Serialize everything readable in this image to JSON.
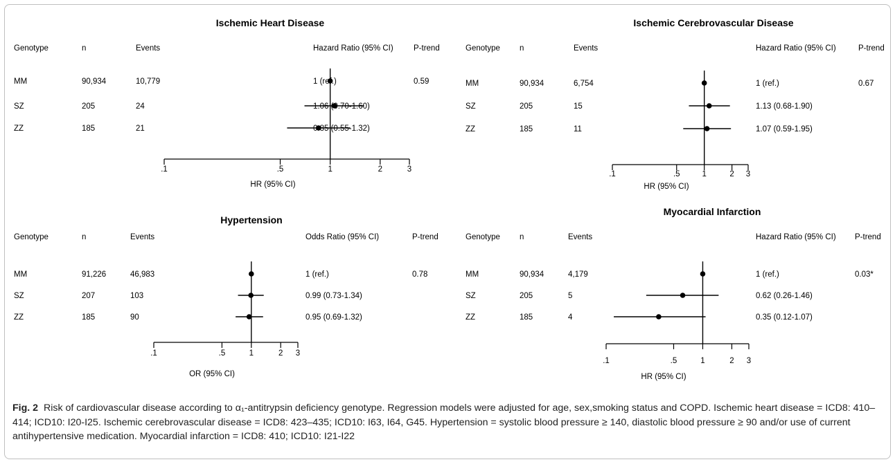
{
  "columns": {
    "genotype": "Genotype",
    "n": "n",
    "events": "Events",
    "p_trend": "P-trend"
  },
  "chart_data": [
    {
      "type": "forest",
      "title": "Ischemic Heart Disease",
      "ratio_header": "Hazard Ratio (95% CI)",
      "xlabel": "HR (95% CI)",
      "x_scale": "log",
      "xlim": [
        0.1,
        3
      ],
      "ticks": [
        {
          "value": 0.1,
          "label": ".1"
        },
        {
          "value": 0.5,
          "label": ".5"
        },
        {
          "value": 1,
          "label": "1"
        },
        {
          "value": 2,
          "label": "2"
        },
        {
          "value": 3,
          "label": "3"
        }
      ],
      "reference_line": 1,
      "p_trend": "0.59",
      "rows": [
        {
          "genotype": "MM",
          "n": "90,934",
          "events": "10,779",
          "estimate": 1,
          "lower": null,
          "upper": null,
          "ratio_text": "1 (ref.)"
        },
        {
          "genotype": "SZ",
          "n": "205",
          "events": "24",
          "estimate": 1.06,
          "lower": 0.7,
          "upper": 1.6,
          "ratio_text": "1.06 (0.70-1.60)"
        },
        {
          "genotype": "ZZ",
          "n": "185",
          "events": "21",
          "estimate": 0.85,
          "lower": 0.55,
          "upper": 1.32,
          "ratio_text": "0.85 (0.55-1.32)"
        }
      ]
    },
    {
      "type": "forest",
      "title": "Ischemic Cerebrovascular Disease",
      "ratio_header": "Hazard Ratio (95% CI)",
      "xlabel": "HR (95% CI)",
      "x_scale": "log",
      "xlim": [
        0.1,
        3
      ],
      "ticks": [
        {
          "value": 0.1,
          "label": ".1"
        },
        {
          "value": 0.5,
          "label": ".5"
        },
        {
          "value": 1,
          "label": "1"
        },
        {
          "value": 2,
          "label": "2"
        },
        {
          "value": 3,
          "label": "3"
        }
      ],
      "reference_line": 1,
      "p_trend": "0.67",
      "rows": [
        {
          "genotype": "MM",
          "n": "90,934",
          "events": "6,754",
          "estimate": 1,
          "lower": null,
          "upper": null,
          "ratio_text": "1 (ref.)"
        },
        {
          "genotype": "SZ",
          "n": "205",
          "events": "15",
          "estimate": 1.13,
          "lower": 0.68,
          "upper": 1.9,
          "ratio_text": "1.13 (0.68-1.90)"
        },
        {
          "genotype": "ZZ",
          "n": "185",
          "events": "11",
          "estimate": 1.07,
          "lower": 0.59,
          "upper": 1.95,
          "ratio_text": "1.07 (0.59-1.95)"
        }
      ]
    },
    {
      "type": "forest",
      "title": "Hypertension",
      "ratio_header": "Odds Ratio (95% CI)",
      "xlabel": "OR (95% CI)",
      "x_scale": "log",
      "xlim": [
        0.1,
        3
      ],
      "ticks": [
        {
          "value": 0.1,
          "label": ".1"
        },
        {
          "value": 0.5,
          "label": ".5"
        },
        {
          "value": 1,
          "label": "1"
        },
        {
          "value": 2,
          "label": "2"
        },
        {
          "value": 3,
          "label": "3"
        }
      ],
      "reference_line": 1,
      "p_trend": "0.78",
      "rows": [
        {
          "genotype": "MM",
          "n": "91,226",
          "events": "46,983",
          "estimate": 1,
          "lower": null,
          "upper": null,
          "ratio_text": "1 (ref.)"
        },
        {
          "genotype": "SZ",
          "n": "207",
          "events": "103",
          "estimate": 0.99,
          "lower": 0.73,
          "upper": 1.34,
          "ratio_text": "0.99 (0.73-1.34)"
        },
        {
          "genotype": "ZZ",
          "n": "185",
          "events": "90",
          "estimate": 0.95,
          "lower": 0.69,
          "upper": 1.32,
          "ratio_text": "0.95 (0.69-1.32)"
        }
      ]
    },
    {
      "type": "forest",
      "title": "Myocardial Infarction",
      "ratio_header": "Hazard Ratio (95% CI)",
      "xlabel": "HR (95% CI)",
      "x_scale": "log",
      "xlim": [
        0.1,
        3
      ],
      "ticks": [
        {
          "value": 0.1,
          "label": ".1"
        },
        {
          "value": 0.5,
          "label": ".5"
        },
        {
          "value": 1,
          "label": "1"
        },
        {
          "value": 2,
          "label": "2"
        },
        {
          "value": 3,
          "label": "3"
        }
      ],
      "reference_line": 1,
      "p_trend": "0.03*",
      "rows": [
        {
          "genotype": "MM",
          "n": "90,934",
          "events": "4,179",
          "estimate": 1,
          "lower": null,
          "upper": null,
          "ratio_text": "1 (ref.)"
        },
        {
          "genotype": "SZ",
          "n": "205",
          "events": "5",
          "estimate": 0.62,
          "lower": 0.26,
          "upper": 1.46,
          "ratio_text": "0.62 (0.26-1.46)"
        },
        {
          "genotype": "ZZ",
          "n": "185",
          "events": "4",
          "estimate": 0.35,
          "lower": 0.12,
          "upper": 1.07,
          "ratio_text": "0.35 (0.12-1.07)"
        }
      ]
    }
  ],
  "caption": {
    "label": "Fig. 2",
    "text": "Risk of cardiovascular disease according to α₁-antitrypsin deficiency genotype. Regression models were adjusted for age, sex,smoking status and COPD. Ischemic heart disease = ICD8: 410–414; ICD10: I20-I25. Ischemic cerebrovascular disease = ICD8: 423–435; ICD10: I63, I64, G45. Hypertension = systolic blood pressure ≥ 140, diastolic blood pressure ≥ 90 and/or use of current antihypertensive medication. Myocardial infarction = ICD8: 410; ICD10: I21-I22"
  }
}
